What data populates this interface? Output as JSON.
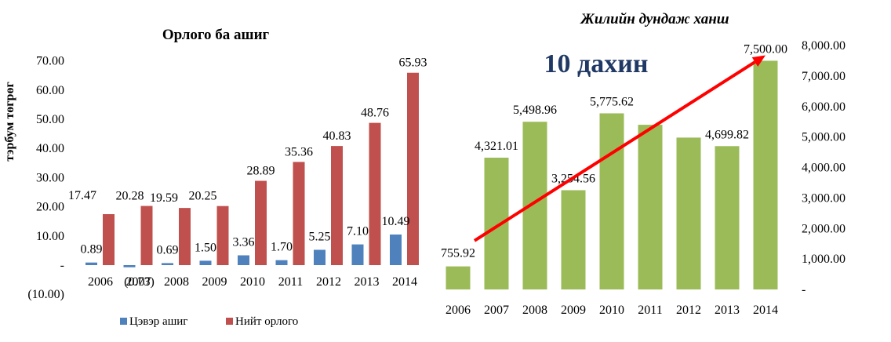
{
  "chart_data": [
    {
      "type": "bar",
      "title": "Орлого ба ашиг",
      "ylabel": "тэрбум төгрөг",
      "xlabel": "",
      "ylim": [
        -10,
        70
      ],
      "yticks": [
        -10,
        0,
        10,
        20,
        30,
        40,
        50,
        60,
        70
      ],
      "ytick_labels": [
        "(10.00)",
        "-",
        "10.00",
        "20.00",
        "30.00",
        "40.00",
        "50.00",
        "60.00",
        "70.00"
      ],
      "categories": [
        "2006",
        "2007",
        "2008",
        "2009",
        "2010",
        "2011",
        "2012",
        "2013",
        "2014"
      ],
      "series": [
        {
          "name": "Цэвэр ашиг",
          "color": "#4f81bd",
          "values": [
            0.89,
            -0.73,
            0.69,
            1.5,
            3.36,
            1.7,
            5.25,
            7.1,
            10.49
          ],
          "labels": [
            "0.89",
            "(0.73)",
            "0.69",
            "1.50",
            "3.36",
            "1.70",
            "5.25",
            "7.10",
            "10.49"
          ]
        },
        {
          "name": "Нийт орлого",
          "color": "#c0504d",
          "values": [
            17.47,
            20.28,
            19.59,
            20.25,
            28.89,
            35.36,
            40.83,
            48.76,
            65.93
          ],
          "labels": [
            "17.47",
            "20.28",
            "19.59",
            "20.25",
            "28.89",
            "35.36",
            "40.83",
            "48.76",
            "65.93"
          ]
        }
      ],
      "legend": "bottom",
      "grid": false
    },
    {
      "type": "bar",
      "title": "Жилийн дундаж ханш",
      "xlabel": "",
      "ylabel": "",
      "ylim": [
        0,
        8000
      ],
      "yaxis_side": "right",
      "yticks": [
        0,
        1000,
        2000,
        3000,
        4000,
        5000,
        6000,
        7000,
        8000
      ],
      "ytick_labels": [
        "-",
        "1,000.00",
        "2,000.00",
        "3,000.00",
        "4,000.00",
        "5,000.00",
        "6,000.00",
        "7,000.00",
        "8,000.00"
      ],
      "categories": [
        "2006",
        "2007",
        "2008",
        "2009",
        "2010",
        "2011",
        "2012",
        "2013",
        "2014"
      ],
      "series": [
        {
          "color": "#9bbb59",
          "values": [
            755.92,
            4321.01,
            5498.96,
            3254.56,
            5775.62,
            5400,
            4980,
            4699.82,
            7500.0
          ],
          "labels": [
            "755.92",
            "4,321.01",
            "5,498.96",
            "3,254.56",
            "5,775.62",
            "",
            "",
            "4,699.82",
            "7,500.00"
          ]
        }
      ],
      "annotation": "10 дахин",
      "trend_arrow": {
        "from": [
          2006,
          1600
        ],
        "to": [
          2014,
          7680
        ],
        "color": "#ff0000"
      },
      "grid": false
    }
  ]
}
